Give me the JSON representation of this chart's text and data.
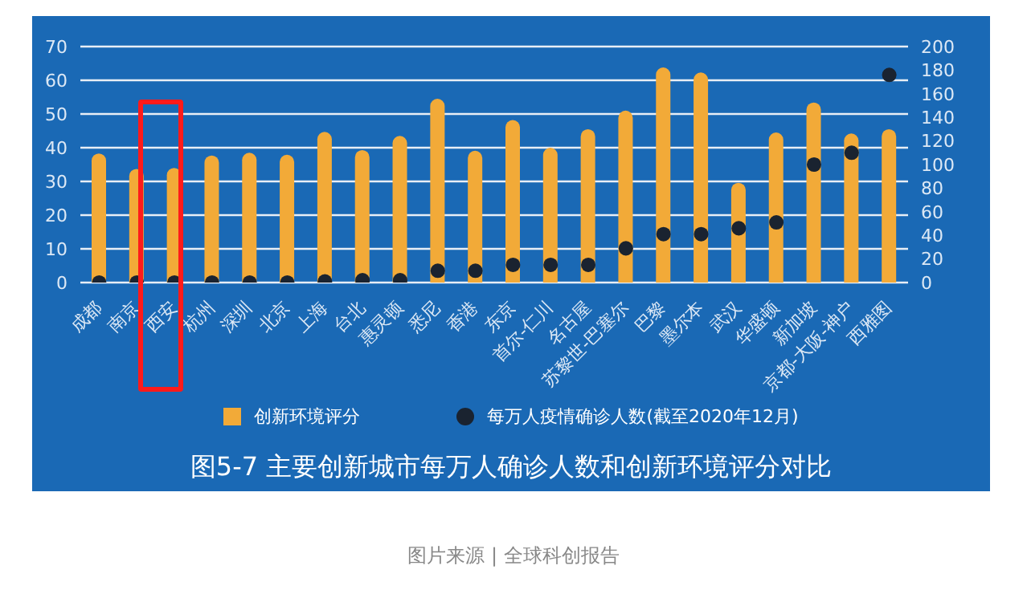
{
  "chart_data": {
    "type": "bar",
    "title": "图5-7 主要创新城市每万人确诊人数和创新环境评分对比",
    "annotations": [
      "图片来源 | 全球科创报告"
    ],
    "categories": [
      "成都",
      "南京",
      "西安",
      "杭州",
      "深圳",
      "北京",
      "上海",
      "台北",
      "惠灵顿",
      "悉尼",
      "香港",
      "东京",
      "首尔-仁川",
      "名古屋",
      "苏黎世-巴塞尔",
      "巴黎",
      "墨尔本",
      "武汉",
      "华盛顿",
      "新加坡",
      "京都-大阪-神户",
      "西雅图"
    ],
    "series": [
      {
        "name": "创新环境评分",
        "color": "#f2aa38",
        "values": [
          38.3,
          33.7,
          34,
          37.7,
          38.5,
          37.9,
          44.7,
          39.3,
          43.5,
          54.5,
          39.1,
          48.2,
          40,
          45.5,
          51,
          63.8,
          62.3,
          29.6,
          44.5,
          53.4,
          44.2,
          45.5
        ]
      },
      {
        "name": "每万人疫情确诊人数(截至2020年12月)",
        "type": "scatter",
        "axis": "y2",
        "color": "#1a2330",
        "values": [
          0,
          0,
          0,
          0,
          0,
          0,
          1,
          2,
          2,
          10,
          10,
          15,
          15,
          15,
          29,
          41,
          41,
          46,
          51,
          100,
          110,
          176
        ]
      }
    ],
    "ylim": [
      0,
      70
    ],
    "yticks": [
      0,
      10,
      20,
      30,
      40,
      50,
      60,
      70
    ],
    "y2lim": [
      0,
      200
    ],
    "y2ticks": [
      0,
      20,
      40,
      60,
      80,
      100,
      120,
      140,
      160,
      180,
      200
    ],
    "grid": "y",
    "legend": "bottom",
    "marker": "circle"
  }
}
